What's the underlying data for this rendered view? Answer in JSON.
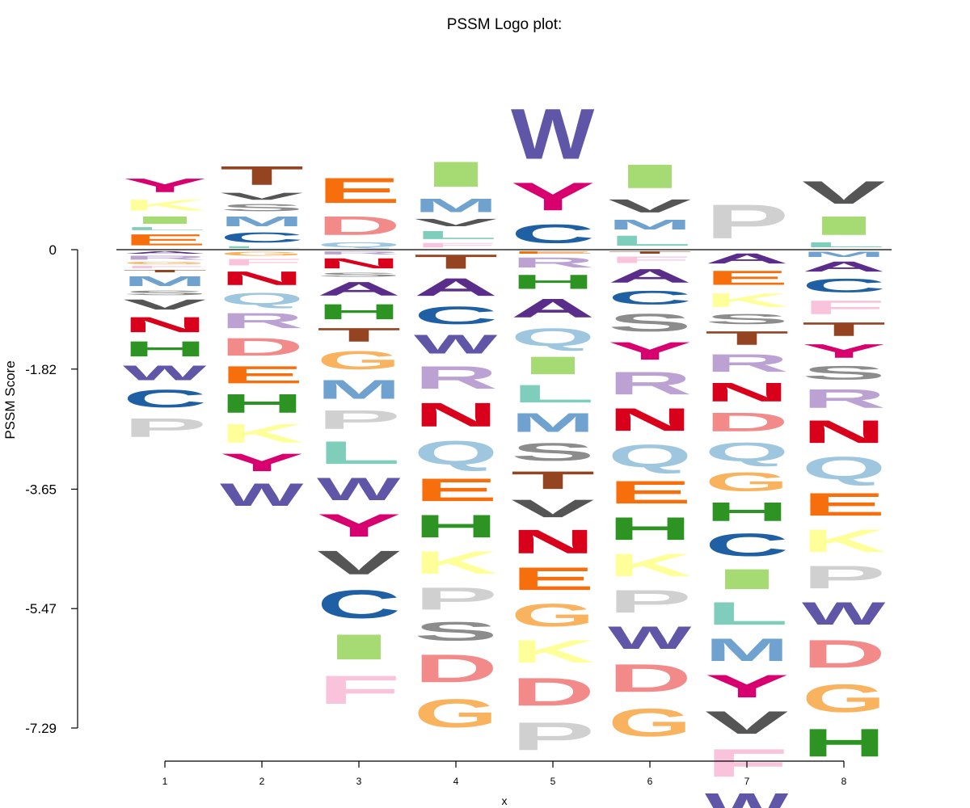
{
  "chart_data": {
    "type": "logo",
    "title": "PSSM Logo plot:",
    "xlabel": "x",
    "ylabel": "PSSM  Score",
    "ylim": [
      -7.29,
      0
    ],
    "yticks": [
      0,
      -1.82,
      -3.65,
      -5.47,
      -7.29
    ],
    "ytick_labels": [
      "0",
      "-1.82",
      "-3.65",
      "-5.47",
      "-7.29"
    ],
    "xticks": [
      1,
      2,
      3,
      4,
      5,
      6,
      7,
      8
    ],
    "xtick_labels": [
      "1",
      "2",
      "3",
      "4",
      "5",
      "6",
      "7",
      "8"
    ],
    "colors": {
      "A": "#5a2d8a",
      "C": "#1f5fa3",
      "D": "#f28a8a",
      "E": "#f76f0d",
      "F": "#f9c3dc",
      "G": "#f9b25e",
      "H": "#2d9423",
      "I": "#a6db74",
      "K": "#ffff99",
      "L": "#7fcdbb",
      "M": "#6fa2cf",
      "N": "#d9001b",
      "P": "#d0d0d0",
      "Q": "#9ec6df",
      "R": "#bca2d2",
      "S": "#8c8c8c",
      "T": "#944420",
      "V": "#555555",
      "W": "#6056a8",
      "Y": "#d8006e"
    },
    "positions": [
      {
        "x": 1,
        "positive": [
          [
            "E",
            0.22
          ],
          [
            "L",
            0.06
          ],
          [
            "I",
            0.15
          ],
          [
            "K",
            0.22
          ],
          [
            "Y",
            0.27
          ]
        ],
        "negative": [
          [
            "A",
            0.05
          ],
          [
            "R",
            0.08
          ],
          [
            "G",
            0.05
          ],
          [
            "F",
            0.05
          ],
          [
            "T",
            0.05
          ],
          [
            "M",
            0.2
          ],
          [
            "S",
            0.09
          ],
          [
            "V",
            0.2
          ],
          [
            "N",
            0.3
          ],
          [
            "H",
            0.3
          ],
          [
            "W",
            0.29
          ],
          [
            "C",
            0.35
          ],
          [
            "P",
            0.37
          ]
        ]
      },
      {
        "x": 2,
        "positive": [
          [
            "L",
            0.04
          ],
          [
            "C",
            0.2
          ],
          [
            "M",
            0.2
          ],
          [
            "S",
            0.14
          ],
          [
            "V",
            0.14
          ],
          [
            "T",
            0.37
          ]
        ],
        "negative": [
          [
            "G",
            0.08
          ],
          [
            "F",
            0.13
          ],
          [
            "N",
            0.27
          ],
          [
            "Q",
            0.24
          ],
          [
            "R",
            0.3
          ],
          [
            "D",
            0.35
          ],
          [
            "E",
            0.34
          ],
          [
            "H",
            0.37
          ],
          [
            "K",
            0.37
          ],
          [
            "Y",
            0.35
          ],
          [
            "W",
            0.45
          ]
        ]
      },
      {
        "x": 3,
        "positive": [
          [
            "Q",
            0.1
          ],
          [
            "D",
            0.37
          ],
          [
            "E",
            0.5
          ]
        ],
        "negative": [
          [
            "R",
            0.06
          ],
          [
            "N",
            0.2
          ],
          [
            "S",
            0.08
          ],
          [
            "A",
            0.27
          ],
          [
            "H",
            0.3
          ],
          [
            "T",
            0.27
          ],
          [
            "G",
            0.36
          ],
          [
            "M",
            0.37
          ],
          [
            "P",
            0.37
          ],
          [
            "L",
            0.45
          ],
          [
            "W",
            0.45
          ],
          [
            "Y",
            0.45
          ],
          [
            "V",
            0.47
          ],
          [
            "C",
            0.56
          ],
          [
            "I",
            0.5
          ],
          [
            "F",
            0.56
          ]
        ]
      },
      {
        "x": 4,
        "positive": [
          [
            "F",
            0.09
          ],
          [
            "L",
            0.16
          ],
          [
            "V",
            0.15
          ],
          [
            "M",
            0.27
          ],
          [
            "I",
            0.5
          ]
        ],
        "negative": [
          [
            "T",
            0.28
          ],
          [
            "A",
            0.35
          ],
          [
            "C",
            0.35
          ],
          [
            "W",
            0.37
          ],
          [
            "R",
            0.45
          ],
          [
            "N",
            0.47
          ],
          [
            "Q",
            0.47
          ],
          [
            "E",
            0.45
          ],
          [
            "H",
            0.45
          ],
          [
            "K",
            0.45
          ],
          [
            "P",
            0.44
          ],
          [
            "S",
            0.37
          ],
          [
            "D",
            0.55
          ],
          [
            "G",
            0.56
          ]
        ]
      },
      {
        "x": 5,
        "positive": [
          [
            "C",
            0.37
          ],
          [
            "Y",
            0.55
          ],
          [
            "W",
            1.0
          ]
        ],
        "negative": [
          [
            "E",
            0.05
          ],
          [
            "R",
            0.2
          ],
          [
            "H",
            0.28
          ],
          [
            "A",
            0.37
          ],
          [
            "Q",
            0.35
          ],
          [
            "I",
            0.35
          ],
          [
            "L",
            0.35
          ],
          [
            "M",
            0.37
          ],
          [
            "S",
            0.35
          ],
          [
            "T",
            0.35
          ],
          [
            "V",
            0.35
          ],
          [
            "N",
            0.47
          ],
          [
            "E",
            0.45
          ],
          [
            "G",
            0.45
          ],
          [
            "K",
            0.45
          ],
          [
            "D",
            0.55
          ],
          [
            "P",
            0.55
          ]
        ]
      },
      {
        "x": 6,
        "positive": [
          [
            "L",
            0.2
          ],
          [
            "M",
            0.2
          ],
          [
            "V",
            0.26
          ],
          [
            "I",
            0.47
          ]
        ],
        "negative": [
          [
            "T",
            0.05
          ],
          [
            "F",
            0.13
          ],
          [
            "A",
            0.27
          ],
          [
            "C",
            0.27
          ],
          [
            "S",
            0.35
          ],
          [
            "Y",
            0.35
          ],
          [
            "R",
            0.45
          ],
          [
            "N",
            0.45
          ],
          [
            "Q",
            0.45
          ],
          [
            "E",
            0.45
          ],
          [
            "H",
            0.45
          ],
          [
            "K",
            0.45
          ],
          [
            "P",
            0.45
          ],
          [
            "W",
            0.45
          ],
          [
            "D",
            0.55
          ],
          [
            "G",
            0.55
          ]
        ]
      },
      {
        "x": 7,
        "positive": [
          [
            "P",
            0.67
          ]
        ],
        "negative": [
          [
            "A",
            0.2
          ],
          [
            "E",
            0.28
          ],
          [
            "K",
            0.27
          ],
          [
            "S",
            0.2
          ],
          [
            "T",
            0.27
          ],
          [
            "R",
            0.35
          ],
          [
            "N",
            0.37
          ],
          [
            "D",
            0.37
          ],
          [
            "Q",
            0.37
          ],
          [
            "G",
            0.37
          ],
          [
            "H",
            0.37
          ],
          [
            "C",
            0.45
          ],
          [
            "I",
            0.4
          ],
          [
            "L",
            0.45
          ],
          [
            "M",
            0.45
          ],
          [
            "Y",
            0.45
          ],
          [
            "V",
            0.45
          ],
          [
            "F",
            0.55
          ],
          [
            "W",
            0.55
          ]
        ]
      },
      {
        "x": 8,
        "positive": [
          [
            "L",
            0.1
          ],
          [
            "I",
            0.37
          ],
          [
            "V",
            0.45
          ]
        ],
        "negative": [
          [
            "M",
            0.1
          ],
          [
            "A",
            0.2
          ],
          [
            "C",
            0.27
          ],
          [
            "F",
            0.27
          ],
          [
            "T",
            0.27
          ],
          [
            "Y",
            0.27
          ],
          [
            "S",
            0.27
          ],
          [
            "R",
            0.37
          ],
          [
            "N",
            0.45
          ],
          [
            "Q",
            0.45
          ],
          [
            "E",
            0.45
          ],
          [
            "K",
            0.45
          ],
          [
            "P",
            0.45
          ],
          [
            "W",
            0.45
          ],
          [
            "D",
            0.55
          ],
          [
            "G",
            0.55
          ],
          [
            "H",
            0.55
          ]
        ]
      }
    ]
  }
}
